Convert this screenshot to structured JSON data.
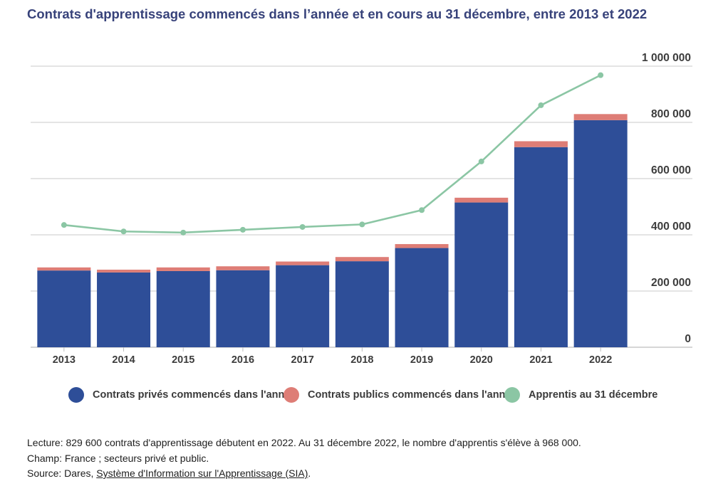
{
  "title": "Contrats d'apprentissage commencés dans l’année et en cours au 31 décembre, entre 2013 et 2022",
  "colors": {
    "prive": "#2e4e98",
    "public": "#de7d76",
    "apprentis": "#8bc6a4",
    "grid": "#d4d4d4",
    "title": "#37427a"
  },
  "chart_data": {
    "type": "bar",
    "stacked": true,
    "categories": [
      "2013",
      "2014",
      "2015",
      "2016",
      "2017",
      "2018",
      "2019",
      "2020",
      "2021",
      "2022"
    ],
    "series": [
      {
        "name": "Contrats privés commencés dans l'année",
        "type": "bar",
        "values": [
          273000,
          266000,
          271000,
          274000,
          292000,
          306000,
          353000,
          515000,
          712000,
          808000
        ]
      },
      {
        "name": "Contrats publics commencés dans l'année",
        "type": "bar",
        "values": [
          11000,
          10000,
          13000,
          14000,
          13000,
          15000,
          14000,
          17000,
          21000,
          21600
        ]
      },
      {
        "name": "Apprentis au 31 décembre",
        "type": "line",
        "values": [
          435000,
          412000,
          408000,
          418000,
          428000,
          437000,
          488000,
          661000,
          861000,
          968000
        ]
      }
    ],
    "ylim": [
      0,
      1000000
    ],
    "yticks": [
      0,
      200000,
      400000,
      600000,
      800000,
      1000000
    ],
    "ytick_labels": [
      "0",
      "200 000",
      "400 000",
      "600 000",
      "800 000",
      "1 000 000"
    ],
    "grid": true,
    "legend_position": "bottom"
  },
  "notes": {
    "lecture": "Lecture: 829 600 contrats d'apprentissage débutent en 2022. Au 31 décembre 2022, le nombre d'apprentis s'élève à 968 000.",
    "champ": "Champ: France ; secteurs privé et public.",
    "source_prefix": "Source: Dares, ",
    "source_link": "Système d'Information sur l'Apprentissage (SIA)",
    "source_suffix": "."
  }
}
